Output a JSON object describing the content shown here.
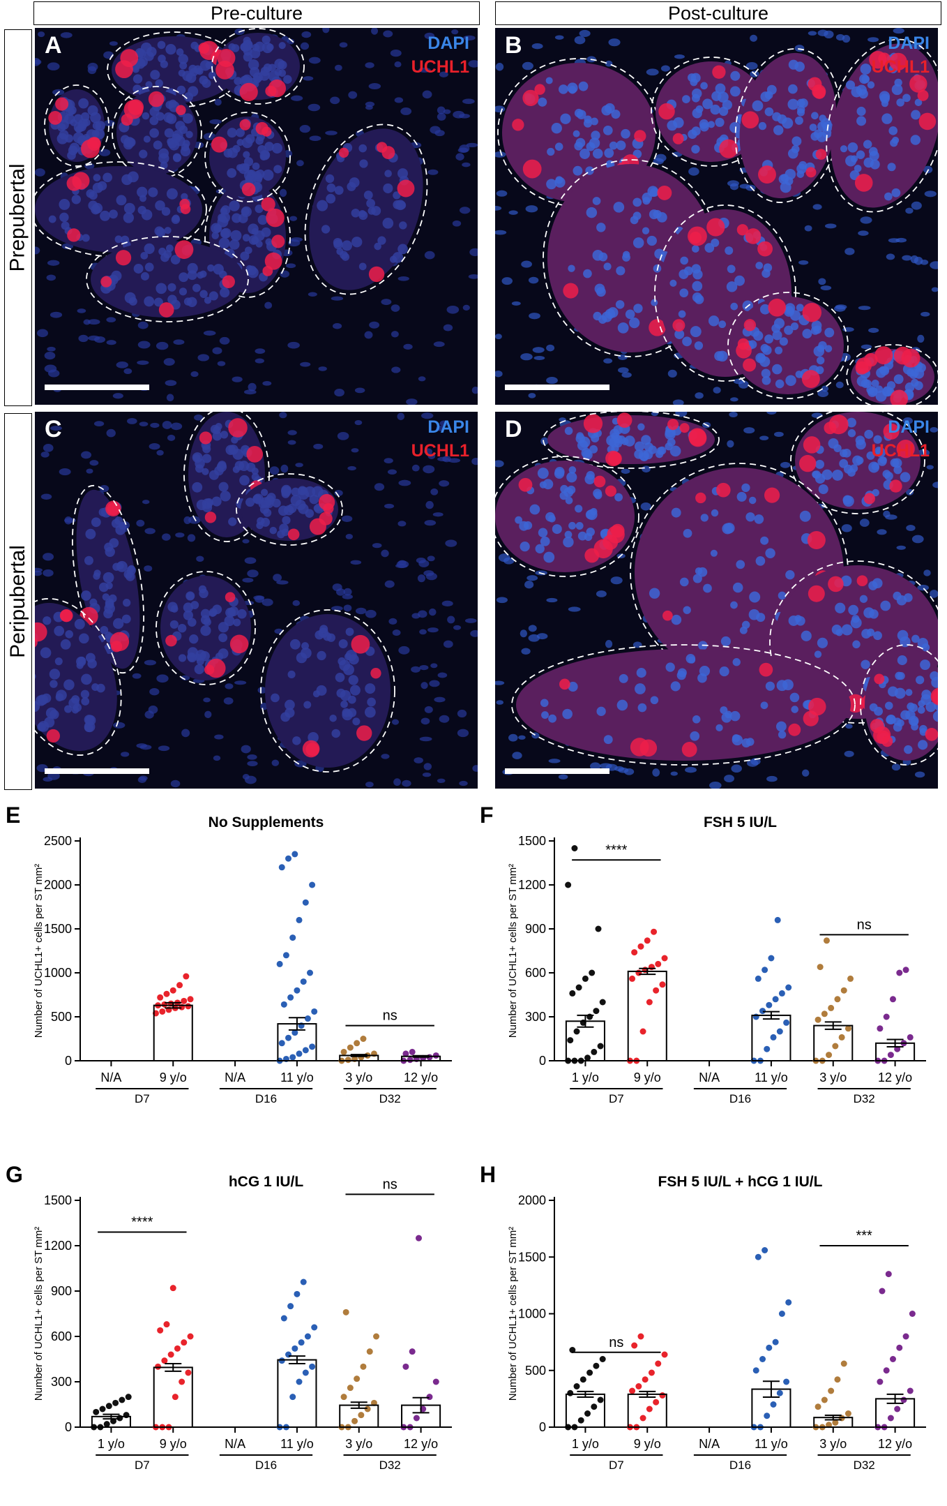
{
  "header": {
    "pre_culture": "Pre-culture",
    "post_culture": "Post-culture"
  },
  "rows": {
    "prepubertal": "Prepubertal",
    "peripubertal": "Peripubertal"
  },
  "panels": {
    "A": {
      "letter": "A",
      "dapi": "DAPI",
      "uchl1": "UCHL1"
    },
    "B": {
      "letter": "B",
      "dapi": "DAPI",
      "uchl1": "UCHL1"
    },
    "C": {
      "letter": "C",
      "dapi": "DAPI",
      "uchl1": "UCHL1"
    },
    "D": {
      "letter": "D",
      "dapi": "DAPI",
      "uchl1": "UCHL1"
    }
  },
  "colors": {
    "black": "#111111",
    "red": "#e8232b",
    "blue": "#2a5fb5",
    "brown": "#b07c3c",
    "purple": "#7a2a8e",
    "dapi_text": "#3a86e8",
    "uchl1_text": "#e8202a"
  },
  "chart_data": [
    {
      "panel": "E",
      "type": "bar",
      "title": "No Supplements",
      "ylabel": "Number of UCHL1+ cells per ST mm²",
      "ylim": [
        0,
        2500
      ],
      "yticks": [
        0,
        500,
        1000,
        1500,
        2000,
        2500
      ],
      "categories": [
        "N/A",
        "9 y/o",
        "N/A",
        "11 y/o",
        "3 y/o",
        "12 y/o"
      ],
      "groups": [
        {
          "label": "D7",
          "from": 0,
          "to": 1
        },
        {
          "label": "D16",
          "from": 2,
          "to": 3
        },
        {
          "label": "D32",
          "from": 4,
          "to": 5
        }
      ],
      "means": [
        null,
        630,
        null,
        420,
        60,
        50
      ],
      "errors": [
        null,
        30,
        null,
        70,
        10,
        8
      ],
      "colors": [
        "#111111",
        "#e8232b",
        "#111111",
        "#2a5fb5",
        "#b07c3c",
        "#7a2a8e"
      ],
      "points": [
        [],
        [
          540,
          560,
          580,
          600,
          610,
          620,
          630,
          640,
          650,
          660,
          680,
          700,
          720,
          760,
          800,
          860,
          960
        ],
        [],
        [
          0,
          20,
          40,
          80,
          120,
          160,
          200,
          260,
          320,
          400,
          480,
          560,
          640,
          720,
          800,
          900,
          1000,
          1100,
          1200,
          1400,
          1600,
          1800,
          2000,
          2200,
          2300,
          2350
        ],
        [
          0,
          10,
          20,
          40,
          60,
          80,
          100,
          150,
          200,
          250
        ],
        [
          0,
          10,
          20,
          30,
          40,
          60,
          80,
          100
        ]
      ],
      "annotations": [
        {
          "text": "ns",
          "from": 4,
          "to": 5,
          "y": 400
        }
      ]
    },
    {
      "panel": "F",
      "type": "bar",
      "title": "FSH 5 IU/L",
      "ylabel": "Number of UCHL1+ cells per ST mm²",
      "ylim": [
        0,
        1500
      ],
      "yticks": [
        0,
        300,
        600,
        900,
        1200,
        1500
      ],
      "categories": [
        "1 y/o",
        "9 y/o",
        "N/A",
        "11 y/o",
        "3 y/o",
        "12 y/o"
      ],
      "groups": [
        {
          "label": "D7",
          "from": 0,
          "to": 1
        },
        {
          "label": "D16",
          "from": 2,
          "to": 3
        },
        {
          "label": "D32",
          "from": 4,
          "to": 5
        }
      ],
      "means": [
        270,
        610,
        null,
        310,
        240,
        120
      ],
      "errors": [
        40,
        20,
        null,
        25,
        25,
        25
      ],
      "colors": [
        "#111111",
        "#e8232b",
        "#111111",
        "#2a5fb5",
        "#b07c3c",
        "#7a2a8e"
      ],
      "points": [
        [
          0,
          0,
          0,
          20,
          60,
          100,
          140,
          200,
          260,
          300,
          340,
          400,
          460,
          500,
          560,
          600,
          900,
          1200,
          1450
        ],
        [
          0,
          0,
          200,
          400,
          480,
          520,
          560,
          600,
          620,
          640,
          660,
          700,
          740,
          780,
          820,
          880
        ],
        [],
        [
          0,
          0,
          80,
          160,
          200,
          260,
          300,
          340,
          380,
          420,
          460,
          500,
          560,
          620,
          700,
          960
        ],
        [
          0,
          0,
          40,
          100,
          160,
          220,
          280,
          320,
          360,
          420,
          480,
          560,
          640,
          820
        ],
        [
          0,
          0,
          40,
          80,
          120,
          160,
          220,
          300,
          420,
          600,
          620
        ]
      ],
      "annotations": [
        {
          "text": "****",
          "from": 0,
          "to": 1,
          "y": 1370
        },
        {
          "text": "ns",
          "from": 4,
          "to": 5,
          "y": 860
        }
      ]
    },
    {
      "panel": "G",
      "type": "bar",
      "title": "hCG 1 IU/L",
      "ylabel": "Number of UCHL1+ cells per ST mm²",
      "ylim": [
        0,
        1500
      ],
      "yticks": [
        0,
        300,
        600,
        900,
        1200,
        1500
      ],
      "categories": [
        "1 y/o",
        "9 y/o",
        "N/A",
        "11 y/o",
        "3 y/o",
        "12 y/o"
      ],
      "groups": [
        {
          "label": "D7",
          "from": 0,
          "to": 1
        },
        {
          "label": "D16",
          "from": 2,
          "to": 3
        },
        {
          "label": "D32",
          "from": 4,
          "to": 5
        }
      ],
      "means": [
        70,
        395,
        null,
        445,
        145,
        145
      ],
      "errors": [
        15,
        25,
        null,
        25,
        20,
        50
      ],
      "colors": [
        "#111111",
        "#e8232b",
        "#111111",
        "#2a5fb5",
        "#b07c3c",
        "#7a2a8e"
      ],
      "points": [
        [
          0,
          0,
          20,
          40,
          60,
          80,
          100,
          120,
          140,
          160,
          180,
          200
        ],
        [
          0,
          0,
          0,
          200,
          300,
          360,
          400,
          440,
          480,
          520,
          560,
          600,
          640,
          680,
          920
        ],
        [],
        [
          0,
          0,
          200,
          300,
          360,
          400,
          440,
          480,
          520,
          560,
          600,
          660,
          720,
          800,
          880,
          960
        ],
        [
          0,
          0,
          40,
          80,
          120,
          160,
          200,
          260,
          320,
          400,
          500,
          600,
          760
        ],
        [
          0,
          0,
          60,
          120,
          200,
          300,
          400,
          500,
          1250
        ]
      ],
      "annotations": [
        {
          "text": "****",
          "from": 0,
          "to": 1,
          "y": 1290
        },
        {
          "text": "ns",
          "from": 4,
          "to": 5,
          "y": 1540
        }
      ]
    },
    {
      "panel": "H",
      "type": "bar",
      "title": "FSH 5 IU/L + hCG 1 IU/L",
      "ylabel": "Number of UCHL1+ cells per ST mm²",
      "ylim": [
        0,
        2000
      ],
      "yticks": [
        0,
        500,
        1000,
        1500,
        2000
      ],
      "categories": [
        "1 y/o",
        "9 y/o",
        "N/A",
        "11 y/o",
        "3 y/o",
        "12 y/o"
      ],
      "groups": [
        {
          "label": "D7",
          "from": 0,
          "to": 1
        },
        {
          "label": "D16",
          "from": 2,
          "to": 3
        },
        {
          "label": "D32",
          "from": 4,
          "to": 5
        }
      ],
      "means": [
        290,
        290,
        null,
        335,
        85,
        250
      ],
      "errors": [
        25,
        25,
        null,
        70,
        20,
        40
      ],
      "colors": [
        "#111111",
        "#e8232b",
        "#111111",
        "#2a5fb5",
        "#b07c3c",
        "#7a2a8e"
      ],
      "points": [
        [
          0,
          0,
          60,
          120,
          180,
          240,
          300,
          360,
          420,
          480,
          540,
          600,
          680
        ],
        [
          0,
          0,
          80,
          160,
          220,
          280,
          320,
          360,
          420,
          480,
          560,
          640,
          720,
          800
        ],
        [],
        [
          0,
          0,
          100,
          200,
          300,
          400,
          500,
          600,
          700,
          750,
          1000,
          1100,
          1500,
          1560
        ],
        [
          0,
          0,
          20,
          40,
          80,
          120,
          180,
          240,
          320,
          420,
          560
        ],
        [
          0,
          0,
          80,
          160,
          240,
          320,
          400,
          500,
          600,
          700,
          800,
          1000,
          1200,
          1350
        ]
      ],
      "annotations": [
        {
          "text": "ns",
          "from": 0,
          "to": 1,
          "y": 660
        },
        {
          "text": "***",
          "from": 4,
          "to": 5,
          "y": 1600
        }
      ]
    }
  ]
}
